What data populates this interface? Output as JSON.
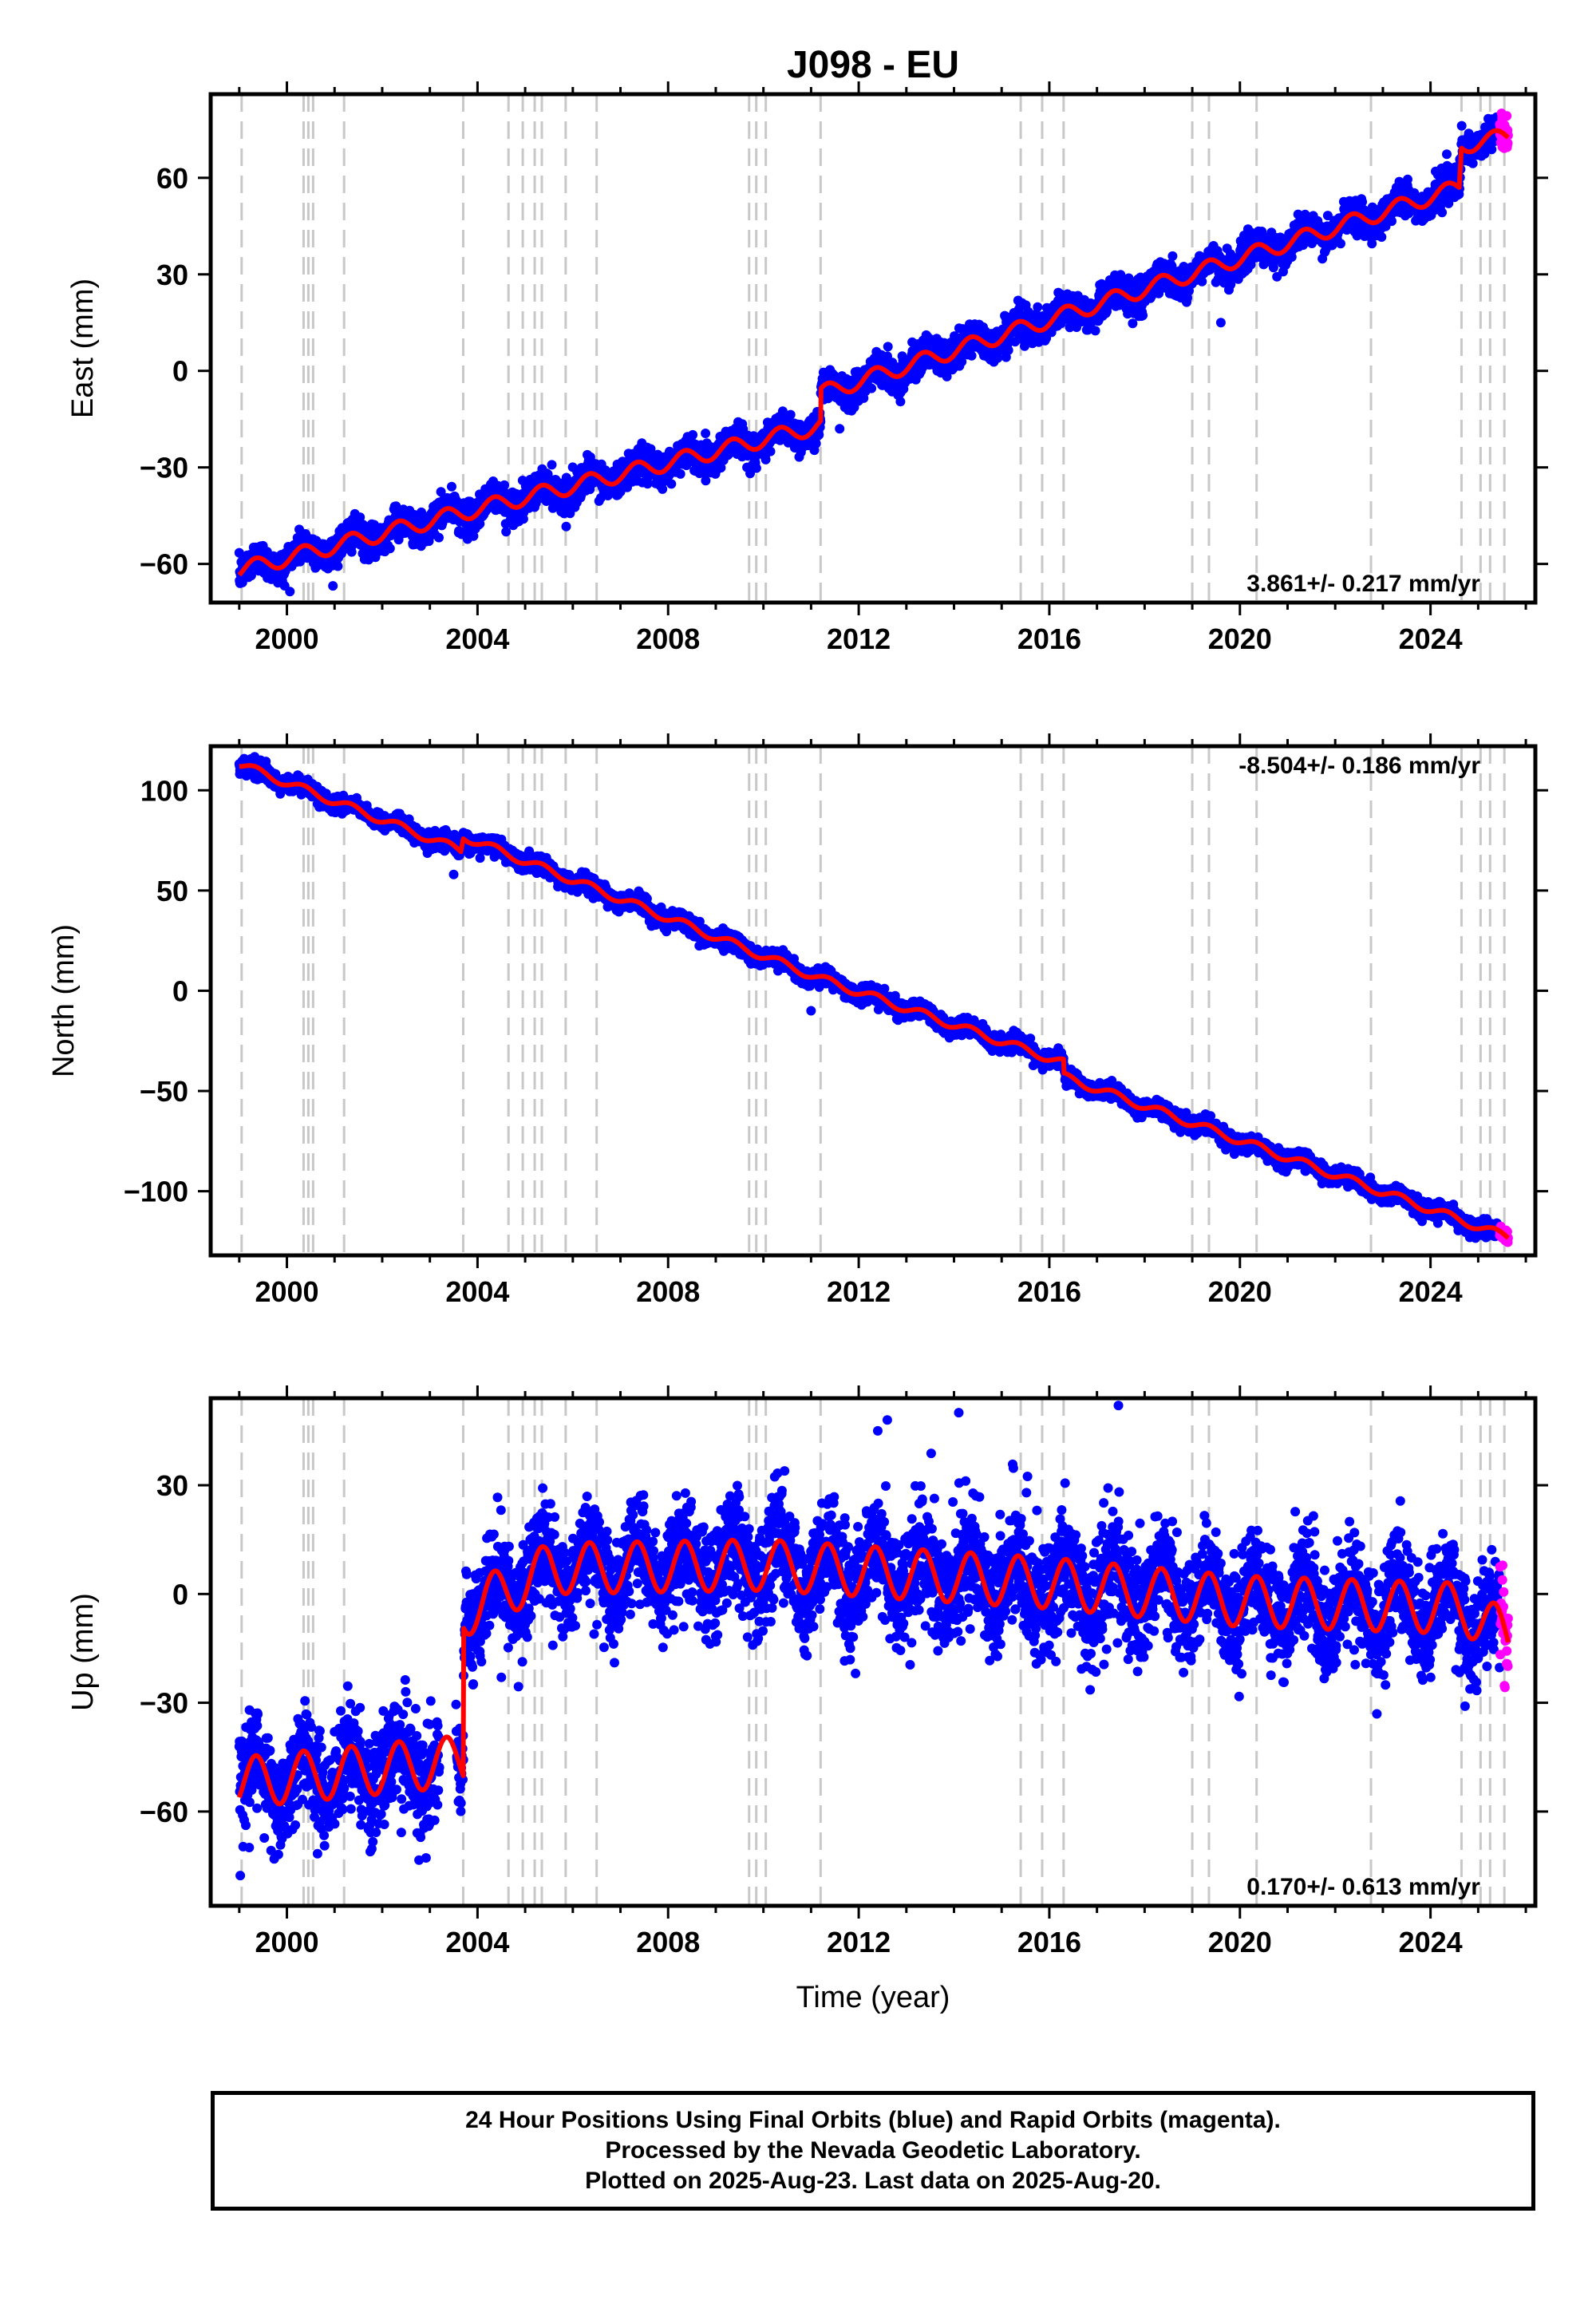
{
  "title": "J098 - EU",
  "xlabel": "Time (year)",
  "colors": {
    "final_orbits": "#0000ff",
    "rapid_orbits": "#ff00ff",
    "model": "#ff0000",
    "events": "#c8c8c8",
    "frame": "#000000"
  },
  "caption": {
    "line1": "24 Hour Positions Using Final Orbits (blue) and Rapid Orbits (magenta).",
    "line2": "Processed by the Nevada Geodetic Laboratory.",
    "line3": "Plotted on 2025-Aug-23. Last data on 2025-Aug-20."
  },
  "chart_data": [
    {
      "type": "scatter",
      "panel": "east",
      "ylabel": "East (mm)",
      "rate_text": "3.861+/- 0.217 mm/yr",
      "rate_position": "bottom-right",
      "xlim": [
        1998.4,
        2026.2
      ],
      "ylim": [
        -72,
        86
      ],
      "x_ticks": [
        2000,
        2004,
        2008,
        2012,
        2016,
        2020,
        2024
      ],
      "x_tick_labels": [
        "2000",
        "2004",
        "2008",
        "2012",
        "2016",
        "2020",
        "2024"
      ],
      "y_ticks": [
        -60,
        -30,
        0,
        30,
        60
      ],
      "y_tick_labels": [
        "−60",
        "−30",
        "0",
        "30",
        "60"
      ],
      "data_span": [
        1999.0,
        2025.63
      ],
      "rapid_span": [
        2025.45,
        2025.63
      ],
      "model_knots": {
        "x": [
          1999.0,
          2003.7,
          2011.2,
          2011.21,
          2024.6,
          2024.65,
          2025.63
        ],
        "y": [
          -62,
          -44,
          -17,
          -7,
          57,
          70,
          73
        ]
      },
      "seasonal_amplitude": 2.5,
      "noise": 2.5,
      "outliers": [
        {
          "x": 2004.6,
          "y": -50
        },
        {
          "x": 2004.75,
          "y": -48
        },
        {
          "x": 2011.6,
          "y": -18
        },
        {
          "x": 2019.6,
          "y": 15
        }
      ]
    },
    {
      "type": "scatter",
      "panel": "north",
      "ylabel": "North (mm)",
      "rate_text": "-8.504+/- 0.186 mm/yr",
      "rate_position": "top-right",
      "xlim": [
        1998.4,
        2026.2
      ],
      "ylim": [
        -132,
        122
      ],
      "x_ticks": [
        2000,
        2004,
        2008,
        2012,
        2016,
        2020,
        2024
      ],
      "x_tick_labels": [
        "2000",
        "2004",
        "2008",
        "2012",
        "2016",
        "2020",
        "2024"
      ],
      "y_ticks": [
        -100,
        -50,
        0,
        50,
        100
      ],
      "y_tick_labels": [
        "−100",
        "−50",
        "0",
        "50",
        "100"
      ],
      "data_span": [
        1999.0,
        2025.63
      ],
      "rapid_span": [
        2025.45,
        2025.63
      ],
      "model_knots": {
        "x": [
          1999.0,
          2003.65,
          2003.7,
          2011.2,
          2016.3,
          2016.31,
          2025.63
        ],
        "y": [
          113,
          70,
          77,
          6,
          -36,
          -43,
          -123
        ]
      },
      "seasonal_amplitude": 2.0,
      "noise": 2.0,
      "outliers": [
        {
          "x": 2011.0,
          "y": -10
        },
        {
          "x": 2003.5,
          "y": 58
        }
      ]
    },
    {
      "type": "scatter",
      "panel": "up",
      "ylabel": "Up (mm)",
      "rate_text": "0.170+/- 0.613 mm/yr",
      "rate_position": "bottom-right",
      "xlim": [
        1998.4,
        2026.2
      ],
      "ylim": [
        -86,
        54
      ],
      "x_ticks": [
        2000,
        2004,
        2008,
        2012,
        2016,
        2020,
        2024
      ],
      "x_tick_labels": [
        "2000",
        "2004",
        "2008",
        "2012",
        "2016",
        "2020",
        "2024"
      ],
      "y_ticks": [
        -60,
        -30,
        0,
        30
      ],
      "y_tick_labels": [
        "−60",
        "−30",
        "0",
        "30"
      ],
      "data_span": [
        1999.0,
        2025.63
      ],
      "data_gap": [
        2003.2,
        2003.55
      ],
      "rapid_span": [
        2025.45,
        2025.63
      ],
      "model_knots": {
        "x": [
          1999.0,
          2003.7,
          2003.71,
          2005.5,
          2010.0,
          2016.0,
          2020.0,
          2024.7,
          2025.63
        ],
        "y": [
          -52,
          -46,
          -5,
          7,
          8,
          3,
          -2,
          -4,
          -12
        ]
      },
      "seasonal_amplitude": 7.0,
      "noise": 7.0,
      "outliers": [
        {
          "x": 2012.6,
          "y": 48
        },
        {
          "x": 2014.1,
          "y": 50
        },
        {
          "x": 2017.45,
          "y": 52
        },
        {
          "x": 2012.4,
          "y": 45
        },
        {
          "x": 2004.5,
          "y": -23
        },
        {
          "x": 2001.0,
          "y": -38
        }
      ]
    }
  ],
  "events": [
    1999.05,
    2000.35,
    2000.45,
    2000.55,
    2001.2,
    2003.7,
    2004.65,
    2004.95,
    2005.2,
    2005.35,
    2005.85,
    2006.5,
    2009.7,
    2009.85,
    2010.05,
    2011.2,
    2015.4,
    2015.85,
    2016.3,
    2019.0,
    2019.35,
    2020.35,
    2022.75,
    2024.65,
    2025.05,
    2025.25,
    2025.55
  ]
}
